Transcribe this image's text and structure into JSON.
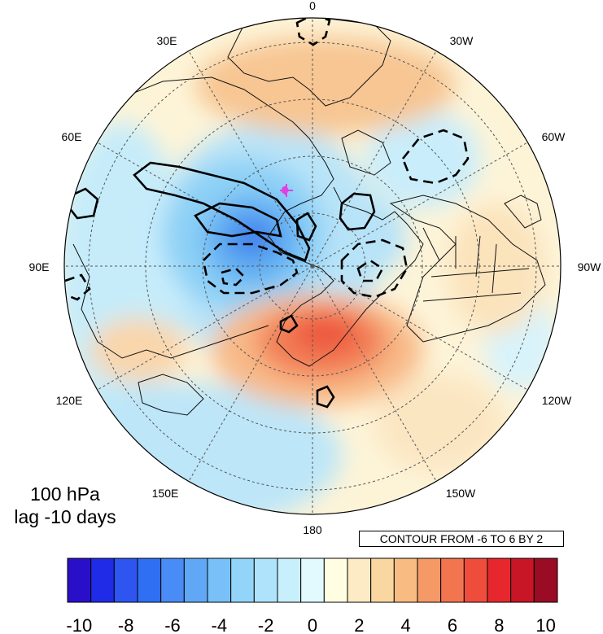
{
  "map": {
    "level": "100 hPa",
    "lag": "lag -10 days",
    "contour_info": "CONTOUR FROM -6 TO 6 BY 2",
    "longitude_labels": {
      "lon_0": "0",
      "lon_30w": "30W",
      "lon_60w": "60W",
      "lon_90w": "90W",
      "lon_120w": "120W",
      "lon_150w": "150W",
      "lon_180": "180",
      "lon_150e": "150E",
      "lon_120e": "120E",
      "lon_90e": "90E",
      "lon_60e": "60E",
      "lon_30e": "30E"
    },
    "colorbar": {
      "tick_labels": [
        "-10",
        "-8",
        "-6",
        "-4",
        "-2",
        "0",
        "2",
        "4",
        "6",
        "8",
        "10"
      ],
      "colors": [
        "#2a0fc8",
        "#1f2be6",
        "#2e55f0",
        "#2f6ff3",
        "#4a8cf5",
        "#60a8f6",
        "#78c0f7",
        "#93d5f9",
        "#aee3fb",
        "#c8effc",
        "#e2f9fd",
        "#fffde2",
        "#fcebc4",
        "#fad6a0",
        "#f8bb82",
        "#f59a66",
        "#f27550",
        "#ee4d3c",
        "#e6282e",
        "#c81627",
        "#9a0b24"
      ]
    },
    "colors": {
      "positive_anomaly": "#f4a070",
      "negative_anomaly": "#7fc6f5",
      "contour": "#000000",
      "grid": "#555555",
      "marker": "#e040e0"
    }
  }
}
